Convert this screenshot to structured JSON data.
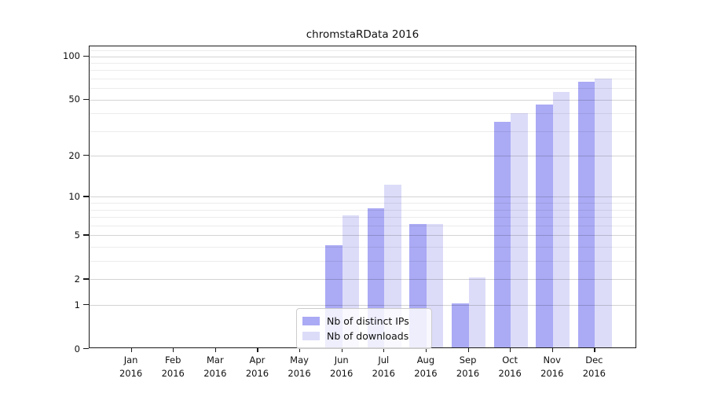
{
  "title": "chromstaRData 2016",
  "chart_data": {
    "type": "bar",
    "title": "chromstaRData 2016",
    "categories": [
      "Jan 2016",
      "Feb 2016",
      "Mar 2016",
      "Apr 2016",
      "May 2016",
      "Jun 2016",
      "Jul 2016",
      "Aug 2016",
      "Sep 2016",
      "Oct 2016",
      "Nov 2016",
      "Dec 2016"
    ],
    "months": [
      "Jan",
      "Feb",
      "Mar",
      "Apr",
      "May",
      "Jun",
      "Jul",
      "Aug",
      "Sep",
      "Oct",
      "Nov",
      "Dec"
    ],
    "year": "2016",
    "series": [
      {
        "name": "Nb of distinct IPs",
        "color": "#aaaaf5",
        "values": [
          0,
          0,
          0,
          0,
          0,
          4,
          8,
          6,
          1,
          34,
          45,
          65
        ]
      },
      {
        "name": "Nb of downloads",
        "color": "#dcdcf9",
        "values": [
          0,
          0,
          0,
          0,
          0,
          7,
          12,
          6,
          2,
          39,
          55,
          68
        ]
      }
    ],
    "y_scale": "log10(1+x)",
    "y_ticks": [
      0,
      1,
      2,
      5,
      10,
      20,
      50,
      100
    ],
    "y_minor_ticks": [
      3,
      4,
      6,
      7,
      8,
      9,
      30,
      40,
      60,
      70,
      80,
      90,
      110
    ],
    "ylim": [
      0,
      117
    ],
    "grid": true,
    "legend_position": "lower-center",
    "background": "#ffffff",
    "axis_color": "#1a1a1a"
  }
}
